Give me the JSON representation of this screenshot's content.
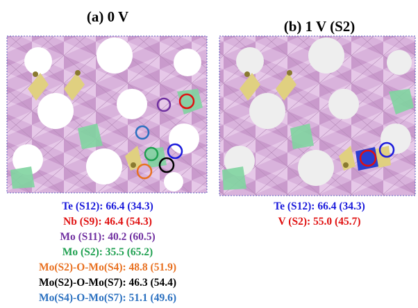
{
  "panels": [
    {
      "title": "(a) 0 V",
      "lines": [
        {
          "text": "Te (S12):  66.4 (34.3)",
          "color": "#1a1adb"
        },
        {
          "text": "Nb (S9): 46.4 (54.3)",
          "color": "#e01010"
        },
        {
          "text": "Mo (S11): 40.2 (60.5)",
          "color": "#7030a0"
        },
        {
          "text": "Mo (S2): 35.5 (65.2)",
          "color": "#1fa050"
        },
        {
          "text": "Mo(S2)-O-Mo(S4):  48.8 (51.9)",
          "color": "#e87020"
        },
        {
          "text": "Mo(S2)-O-Mo(S7): 46.3 (54.4)",
          "color": "#000000"
        },
        {
          "text": "Mo(S4)-O-Mo(S7):  51.1 (49.6)",
          "color": "#2a70c0"
        }
      ]
    },
    {
      "title": "(b) 1 V (S2)",
      "lines": [
        {
          "text": "Te (S12): 66.4 (34.3)",
          "color": "#1a1adb"
        },
        {
          "text": "V (S2): 55.0 (45.7)",
          "color": "#e01010"
        }
      ]
    }
  ]
}
